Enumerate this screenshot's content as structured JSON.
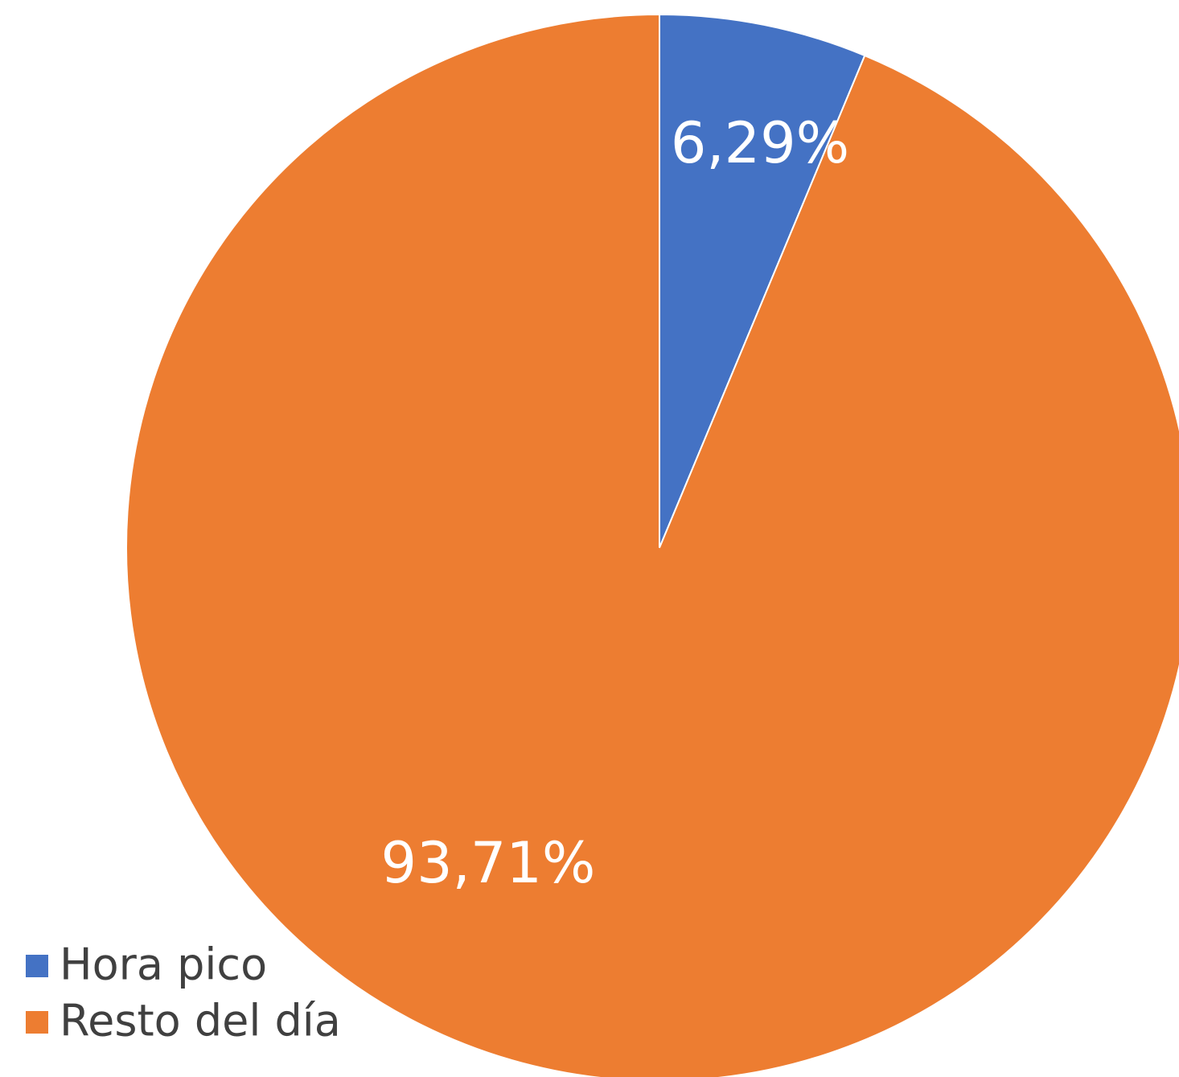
{
  "chart_data": {
    "type": "pie",
    "categories": [
      "Hora pico",
      "Resto del día"
    ],
    "values": [
      6.29,
      93.71
    ],
    "value_labels": [
      "6,29%",
      "93,71%"
    ],
    "colors": [
      "#4472c4",
      "#ed7d31"
    ],
    "legend": "bottom-left"
  }
}
